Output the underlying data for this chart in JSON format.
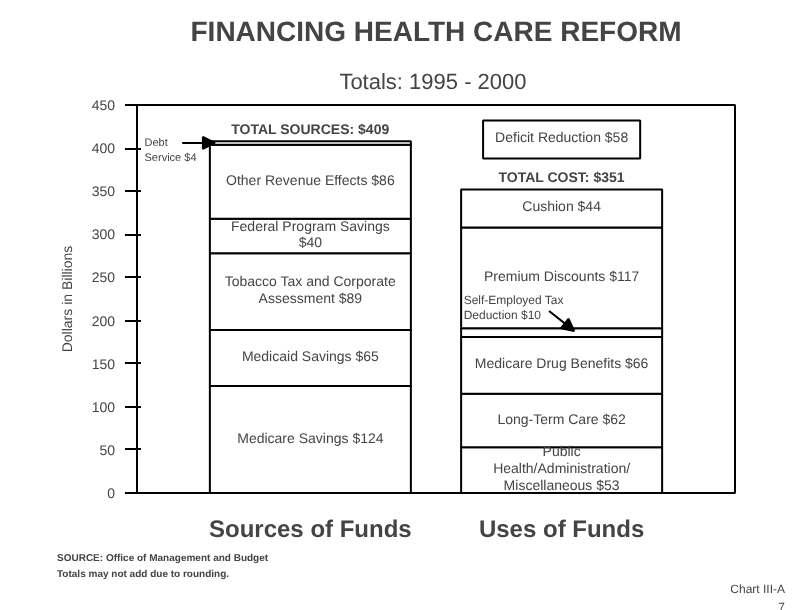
{
  "chart_data": {
    "type": "bar",
    "title": "FINANCING HEALTH CARE REFORM",
    "subtitle": "Totals:  1995 - 2000",
    "ylabel": "Dollars in Billions",
    "categories": [
      "Sources of Funds",
      "Uses of Funds"
    ],
    "stacked": true,
    "ylim": [
      0,
      450
    ],
    "yticks": [
      0,
      50,
      100,
      150,
      200,
      250,
      300,
      350,
      400,
      450
    ],
    "grid": false,
    "series": [
      {
        "name": "Medicare Savings",
        "color": "#ffffff",
        "values": [
          124,
          null
        ],
        "value_labels": [
          "$124",
          null
        ]
      },
      {
        "name": "Public Health/Administration/ Miscellaneous",
        "color": "#ffffff",
        "values": [
          null,
          53
        ],
        "value_labels": [
          null,
          "$53"
        ]
      },
      {
        "name": "Medicaid Savings",
        "color": "#ffffff",
        "values": [
          65,
          null
        ],
        "value_labels": [
          "$65",
          null
        ]
      },
      {
        "name": "Long-Term Care",
        "color": "#ffffff",
        "values": [
          null,
          62
        ],
        "value_labels": [
          null,
          "$62"
        ]
      },
      {
        "name": "Tobacco Tax and Corporate Assessment",
        "color": "#ffffff",
        "values": [
          89,
          null
        ],
        "value_labels": [
          "$89",
          null
        ]
      },
      {
        "name": "Medicare Drug Benefits",
        "color": "#ffffff",
        "values": [
          null,
          66
        ],
        "value_labels": [
          null,
          "$66"
        ]
      },
      {
        "name": "Federal Program Savings",
        "color": "#ffffff",
        "values": [
          40,
          null
        ],
        "value_labels": [
          "$40",
          null
        ]
      },
      {
        "name": "Self-Employed Tax Deduction",
        "color": "#ffffff",
        "values": [
          null,
          10
        ],
        "value_labels": [
          null,
          "$10"
        ]
      },
      {
        "name": "Other Revenue Effects",
        "color": "#ffffff",
        "values": [
          86,
          null
        ],
        "value_labels": [
          "$86",
          null
        ]
      },
      {
        "name": "Premium Discounts",
        "color": "#ffffff",
        "values": [
          null,
          117
        ],
        "value_labels": [
          null,
          "$117"
        ]
      },
      {
        "name": "Debt Service",
        "color": "#ffffff",
        "values": [
          4,
          null
        ],
        "value_labels": [
          "$4",
          null
        ]
      },
      {
        "name": "Cushion",
        "color": "#ffffff",
        "values": [
          null,
          44
        ],
        "value_labels": [
          null,
          "$44"
        ]
      }
    ],
    "totals": [
      "TOTAL SOURCES: $409",
      "TOTAL COST: $351"
    ],
    "annotations": [
      "Deficit Reduction $58",
      "SOURCE: Office of Management and Budget",
      "Totals may not add  due to rounding.",
      "Chart III-A",
      "7"
    ]
  }
}
